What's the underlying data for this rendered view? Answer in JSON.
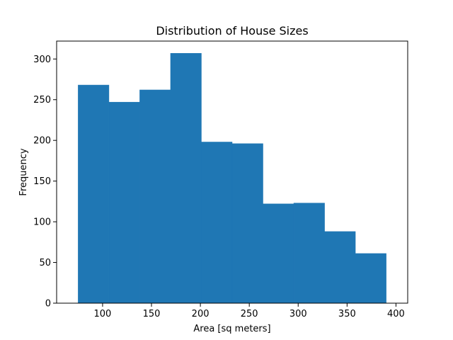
{
  "chart_data": {
    "type": "bar",
    "title": "Distribution of House Sizes",
    "xlabel": "Area [sq meters]",
    "ylabel": "Frequency",
    "bin_edges": [
      75,
      106.5,
      138,
      169.5,
      201,
      232.5,
      264,
      295.5,
      327,
      358.5,
      390
    ],
    "values": [
      268,
      247,
      262,
      307,
      198,
      196,
      122,
      123,
      88,
      61
    ],
    "xlim": [
      53,
      412
    ],
    "ylim": [
      0,
      322
    ],
    "xticks": [
      100,
      150,
      200,
      250,
      300,
      350,
      400
    ],
    "yticks": [
      0,
      50,
      100,
      150,
      200,
      250,
      300
    ],
    "bar_color": "#1f77b4",
    "grid": false,
    "legend": "none"
  }
}
